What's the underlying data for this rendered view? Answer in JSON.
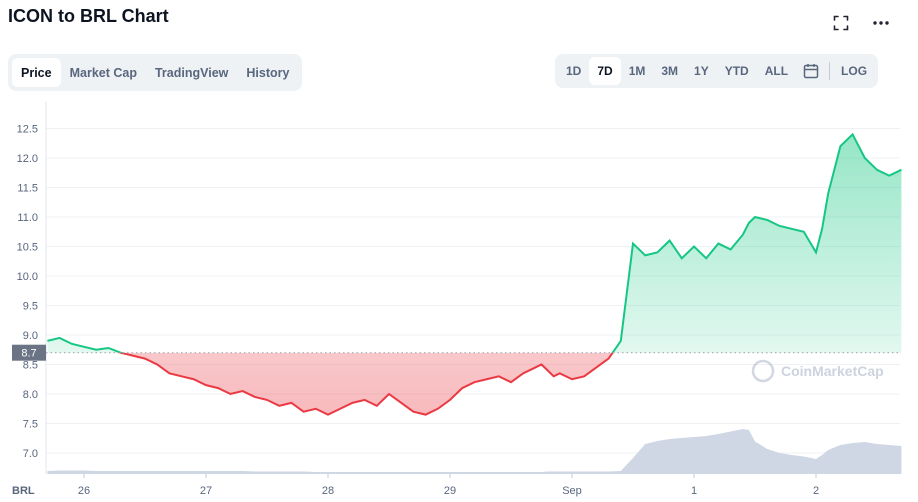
{
  "header": {
    "title": "ICON to BRL Chart",
    "expand_icon": "expand-icon",
    "more_icon": "more-horizontal-icon"
  },
  "tabs": [
    {
      "label": "Price",
      "active": true
    },
    {
      "label": "Market Cap",
      "active": false
    },
    {
      "label": "TradingView",
      "active": false
    },
    {
      "label": "History",
      "active": false
    }
  ],
  "ranges": [
    {
      "label": "1D",
      "active": false
    },
    {
      "label": "7D",
      "active": true
    },
    {
      "label": "1M",
      "active": false
    },
    {
      "label": "3M",
      "active": false
    },
    {
      "label": "1Y",
      "active": false
    },
    {
      "label": "YTD",
      "active": false
    },
    {
      "label": "ALL",
      "active": false
    }
  ],
  "calendar_icon": "calendar-icon",
  "log_label": "LOG",
  "colors": {
    "up": "#16c784",
    "down": "#ea3943",
    "volume": "#cfd6e4",
    "grid": "#eff2f5",
    "text": "#58667e"
  },
  "chart_data": {
    "type": "line",
    "currency": "BRL",
    "baseline": 8.7,
    "baseline_label": "8.7",
    "ylim": [
      6.8,
      12.7
    ],
    "yticks": [
      "12.5",
      "12.0",
      "11.5",
      "11.0",
      "10.5",
      "10.0",
      "9.5",
      "9.0",
      "8.5",
      "8.0",
      "7.5",
      "7.0"
    ],
    "xlabels": [
      "26",
      "27",
      "28",
      "29",
      "Sep",
      "1",
      "2"
    ],
    "xlim": [
      -0.3,
      6.7
    ],
    "x": [
      -0.3,
      -0.2,
      -0.1,
      0,
      0.1,
      0.2,
      0.3,
      0.4,
      0.5,
      0.6,
      0.7,
      0.8,
      0.9,
      1.0,
      1.1,
      1.2,
      1.3,
      1.4,
      1.5,
      1.6,
      1.7,
      1.8,
      1.9,
      2.0,
      2.1,
      2.2,
      2.3,
      2.4,
      2.5,
      2.6,
      2.7,
      2.8,
      2.9,
      3.0,
      3.1,
      3.2,
      3.3,
      3.4,
      3.5,
      3.6,
      3.7,
      3.75,
      3.8,
      3.85,
      3.9,
      4.0,
      4.1,
      4.2,
      4.3,
      4.4,
      4.5,
      4.6,
      4.7,
      4.8,
      4.9,
      5.0,
      5.1,
      5.2,
      5.3,
      5.4,
      5.45,
      5.5,
      5.6,
      5.7,
      5.8,
      5.9,
      6.0,
      6.05,
      6.1,
      6.2,
      6.3,
      6.4,
      6.5,
      6.6,
      6.7
    ],
    "y": [
      8.9,
      8.95,
      8.85,
      8.8,
      8.75,
      8.78,
      8.7,
      8.65,
      8.6,
      8.5,
      8.35,
      8.3,
      8.25,
      8.15,
      8.1,
      8.0,
      8.05,
      7.95,
      7.9,
      7.8,
      7.85,
      7.7,
      7.75,
      7.65,
      7.75,
      7.85,
      7.9,
      7.8,
      8.0,
      7.85,
      7.7,
      7.65,
      7.75,
      7.9,
      8.1,
      8.2,
      8.25,
      8.3,
      8.2,
      8.35,
      8.45,
      8.5,
      8.4,
      8.3,
      8.35,
      8.25,
      8.3,
      8.45,
      8.6,
      8.9,
      10.55,
      10.35,
      10.4,
      10.6,
      10.3,
      10.5,
      10.3,
      10.55,
      10.45,
      10.7,
      10.9,
      11.0,
      10.95,
      10.85,
      10.8,
      10.75,
      10.4,
      10.8,
      11.4,
      12.2,
      12.4,
      12.0,
      11.8,
      11.7,
      11.8
    ],
    "volume_note": "relative volume level 0-1",
    "volume": [
      0.06,
      0.07,
      0.07,
      0.07,
      0.06,
      0.06,
      0.06,
      0.06,
      0.06,
      0.06,
      0.06,
      0.06,
      0.06,
      0.06,
      0.06,
      0.06,
      0.06,
      0.05,
      0.05,
      0.05,
      0.05,
      0.05,
      0.04,
      0.04,
      0.04,
      0.04,
      0.04,
      0.04,
      0.04,
      0.04,
      0.04,
      0.04,
      0.04,
      0.04,
      0.04,
      0.04,
      0.04,
      0.04,
      0.04,
      0.04,
      0.04,
      0.04,
      0.05,
      0.05,
      0.05,
      0.05,
      0.05,
      0.05,
      0.05,
      0.06,
      0.32,
      0.6,
      0.66,
      0.7,
      0.72,
      0.74,
      0.76,
      0.8,
      0.85,
      0.9,
      0.88,
      0.65,
      0.5,
      0.42,
      0.38,
      0.35,
      0.3,
      0.38,
      0.48,
      0.58,
      0.62,
      0.64,
      0.6,
      0.58,
      0.56
    ],
    "watermark": "CoinMarketCap"
  }
}
